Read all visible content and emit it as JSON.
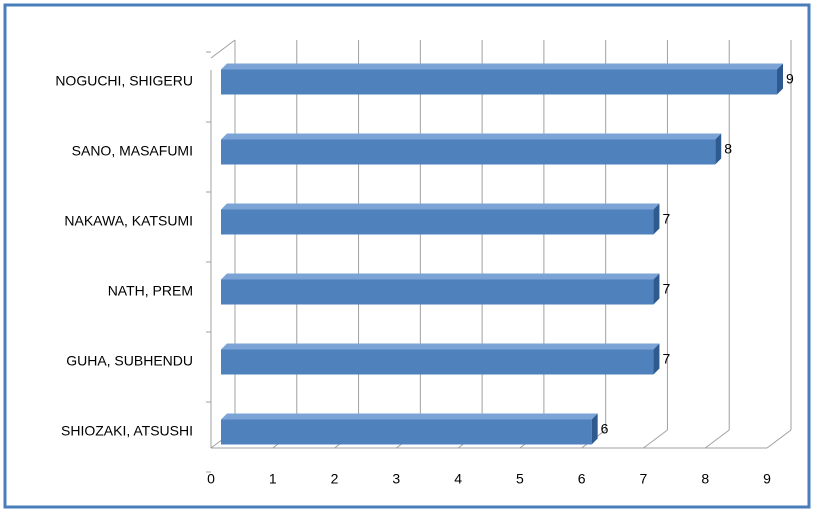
{
  "chart_data": {
    "type": "bar",
    "orientation": "horizontal",
    "categories": [
      "NOGUCHI, SHIGERU",
      "SANO, MASAFUMI",
      "NAKAWA, KATSUMI",
      "NATH, PREM",
      "GUHA, SUBHENDU",
      "SHIOZAKI, ATSUSHI"
    ],
    "values": [
      9,
      8,
      7,
      7,
      7,
      6
    ],
    "color": "#4f81bd",
    "xlim": [
      0,
      9
    ],
    "xticks": [
      0,
      1,
      2,
      3,
      4,
      5,
      6,
      7,
      8,
      9
    ],
    "grid": true
  }
}
